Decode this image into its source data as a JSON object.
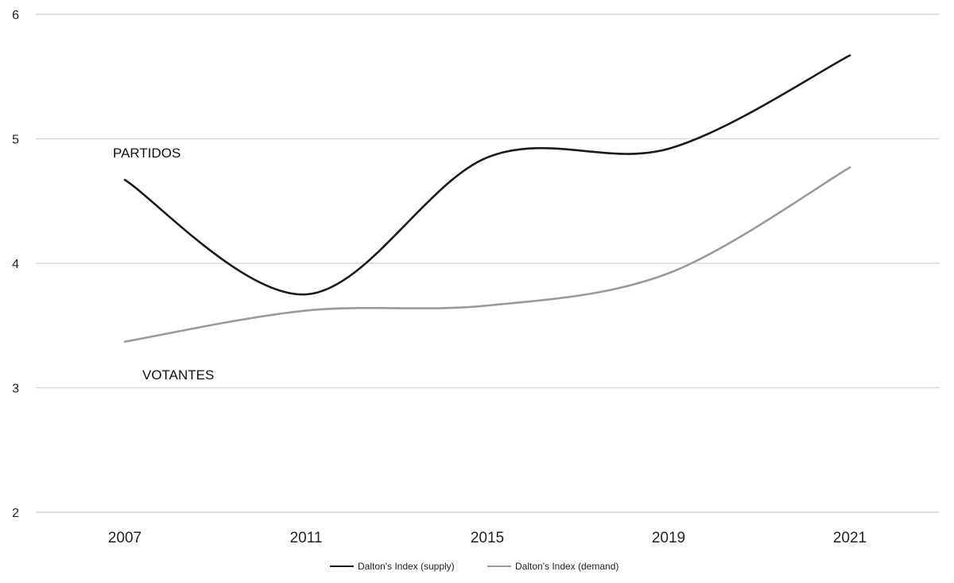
{
  "chart_data": {
    "type": "line",
    "categories": [
      "2007",
      "2011",
      "2015",
      "2019",
      "2021"
    ],
    "ylim": [
      2,
      6
    ],
    "yticks": [
      2,
      3,
      4,
      5,
      6
    ],
    "grid": true,
    "legend_position": "bottom",
    "series": [
      {
        "name": "Dalton's Index (supply)",
        "color": "#1a1a1a",
        "values": [
          4.67,
          3.75,
          4.85,
          4.92,
          5.67
        ]
      },
      {
        "name": "Dalton's Index (demand)",
        "color": "#9a9a9a",
        "values": [
          3.37,
          3.62,
          3.66,
          3.92,
          4.77
        ]
      }
    ],
    "annotations": [
      "PARTIDOS",
      "VOTANTES"
    ]
  }
}
